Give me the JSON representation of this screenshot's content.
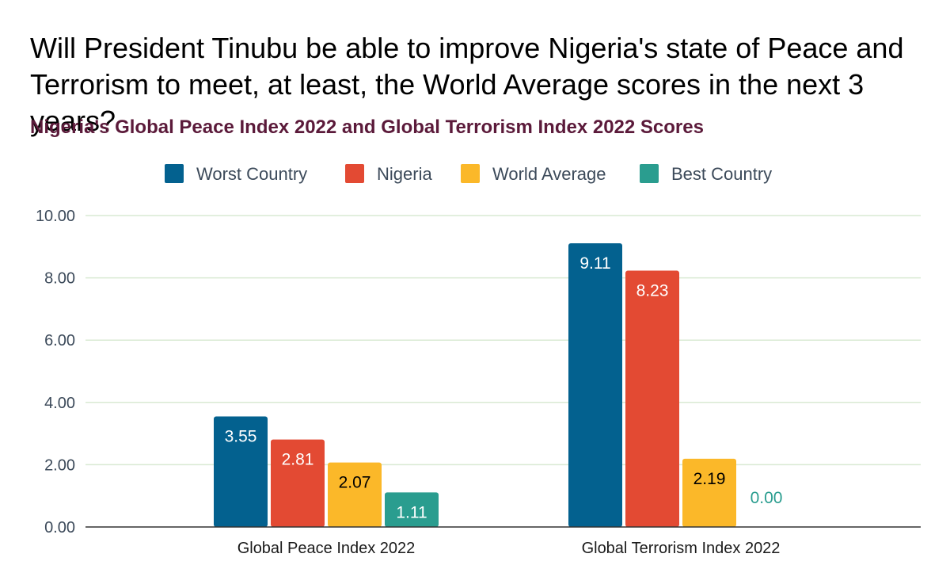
{
  "header": {
    "title": "Will President Tinubu be able to improve Nigeria's state of Peace and Terrorism to meet, at least, the World Average scores in the next 3 years?",
    "subtitle": "Nigeria's Global Peace Index 2022 and Global Terrorism Index 2022 Scores"
  },
  "chart_data": {
    "type": "bar",
    "title": "Will President Tinubu be able to improve Nigeria's state of Peace and Terrorism to meet, at least, the World Average scores in the next 3 years?",
    "subtitle": "Nigeria's Global Peace Index 2022 and Global Terrorism Index 2022 Scores",
    "categories": [
      "Global Peace Index 2022",
      "Global Terrorism Index 2022"
    ],
    "series": [
      {
        "name": "Worst Country",
        "color": "#03618f",
        "values": [
          3.55,
          9.11
        ],
        "labels": [
          "3.55",
          "9.11"
        ],
        "label_color": "#ffffff"
      },
      {
        "name": "Nigeria",
        "color": "#e34a33",
        "values": [
          2.81,
          8.23
        ],
        "labels": [
          "2.81",
          "8.23"
        ],
        "label_color": "#ffffff"
      },
      {
        "name": "World Average",
        "color": "#fbb829",
        "values": [
          2.07,
          2.19
        ],
        "labels": [
          "2.07",
          "2.19"
        ],
        "label_color": "#000000"
      },
      {
        "name": "Best Country",
        "color": "#2a9d8f",
        "values": [
          1.11,
          0.0
        ],
        "labels": [
          "1.11",
          "0.00"
        ],
        "label_color": "#ffffff"
      }
    ],
    "xlabel": "",
    "ylabel": "",
    "ylim": [
      0,
      10
    ],
    "yticks": [
      "0.00",
      "2.00",
      "4.00",
      "6.00",
      "8.00",
      "10.00"
    ],
    "grid": true,
    "legend_position": "top-center"
  }
}
